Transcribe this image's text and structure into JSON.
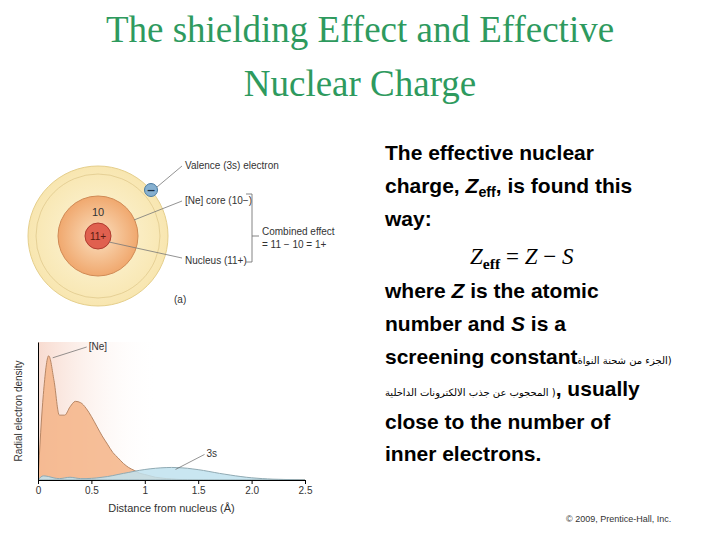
{
  "slide": {
    "title": [
      "The shielding Effect and Effective",
      "Nuclear Charge"
    ],
    "paragraph1": [
      [
        {
          "text": "The effective nuclear"
        }
      ],
      [
        {
          "text": "charge, "
        },
        {
          "text": "Z",
          "italic": true
        },
        {
          "text": "eff",
          "sub": true
        },
        {
          "text": ", is found this"
        }
      ],
      [
        {
          "text": "way:"
        }
      ]
    ],
    "formula": [
      {
        "text": "Z",
        "italic": true
      },
      {
        "text": "eff",
        "sub": true
      },
      {
        "text": " = "
      },
      {
        "text": "Z",
        "italic": true
      },
      {
        "text": " − "
      },
      {
        "text": "S",
        "italic": true
      }
    ],
    "paragraph2": [
      [
        {
          "text": "where "
        },
        {
          "text": "Z",
          "italic": true
        },
        {
          "text": " is the atomic"
        }
      ],
      [
        {
          "text": "number and "
        },
        {
          "text": "S",
          "italic": true
        },
        {
          "text": " is a"
        }
      ],
      [
        {
          "text": "screening constant"
        },
        {
          "text": "(الجزء من شحنة النواة",
          "small": true
        }
      ],
      [
        {
          "text": "( المحجوب عن جذب الالكترونات الداخلية",
          "small": true
        },
        {
          "text": ", usually"
        }
      ],
      [
        {
          "text": "close to the number of"
        }
      ],
      [
        {
          "text": "inner electrons."
        }
      ]
    ],
    "credit": "© 2009, Prentice-Hall, Inc."
  },
  "diagram": {
    "valence_label": "Valence (3s) electron",
    "core_label": "[Ne] core (10−)",
    "nucleus_label": "Nucleus (11+)",
    "combined": [
      "Combined effect",
      "= 11 − 10 = 1+"
    ],
    "core_charge": "10",
    "nucleus_charge": "11+",
    "electron": "−",
    "panel": "(a)"
  },
  "chart_data": {
    "type": "area",
    "xlabel": "Distance from nucleus (Å)",
    "ylabel": "Radial electron density",
    "x": [
      0,
      0.05,
      0.1,
      0.15,
      0.2,
      0.25,
      0.3,
      0.35,
      0.4,
      0.45,
      0.5,
      0.55,
      0.6,
      0.65,
      0.7,
      0.75,
      0.8,
      0.85,
      0.9,
      0.95,
      1,
      1.05,
      1.1,
      1.15,
      1.2,
      1.25,
      1.3,
      1.35,
      1.4,
      1.45,
      1.5,
      1.55,
      1.6,
      1.65,
      1.7,
      1.75,
      1.8,
      1.85,
      1.9,
      1.95,
      2,
      2.05,
      2.1,
      2.15,
      2.2,
      2.25,
      2.3,
      2.35,
      2.4,
      2.45,
      2.5
    ],
    "xlim": [
      0,
      2.5
    ],
    "xticks": [
      0,
      0.5,
      1,
      1.5,
      {
        "value": 2,
        "label": "2.0"
      },
      2.5
    ],
    "ylim": [
      0,
      1
    ],
    "tick_labels": "x",
    "series": [
      {
        "name": "[Ne]",
        "color": "#f5b487",
        "values": [
          0,
          0.62,
          0.9,
          0.72,
          0.47,
          0.47,
          0.53,
          0.57,
          0.56,
          0.52,
          0.46,
          0.39,
          0.32,
          0.26,
          0.2,
          0.16,
          0.12,
          0.09,
          0.07,
          0.05,
          0.04,
          0.03,
          0.02,
          0.015,
          0.01,
          0.008,
          0.005,
          0.003,
          0.002,
          0,
          0,
          0,
          0,
          0,
          0,
          0,
          0,
          0,
          0,
          0,
          0,
          0,
          0,
          0,
          0,
          0,
          0,
          0,
          0,
          0,
          0
        ]
      },
      {
        "name": "3s",
        "color": "#bfe2ee",
        "values": [
          0,
          0.03,
          0.025,
          0.015,
          0.01,
          0.015,
          0.02,
          0.015,
          0.01,
          0.01,
          0.012,
          0.015,
          0.02,
          0.025,
          0.032,
          0.04,
          0.048,
          0.055,
          0.063,
          0.07,
          0.076,
          0.081,
          0.085,
          0.088,
          0.09,
          0.091,
          0.09,
          0.088,
          0.085,
          0.08,
          0.075,
          0.069,
          0.062,
          0.055,
          0.048,
          0.042,
          0.036,
          0.03,
          0.025,
          0.02,
          0.016,
          0.013,
          0.01,
          0.008,
          0.006,
          0.005,
          0.004,
          0.003,
          0.002,
          0.001,
          0
        ]
      }
    ]
  }
}
